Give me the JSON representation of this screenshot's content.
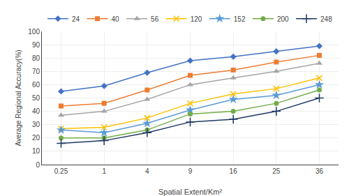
{
  "chart_data": {
    "type": "line",
    "xlabel": "Spatial Extent/Km²",
    "ylabel": "Average Regional Accuracy(%)",
    "categories": [
      "0.25",
      "1",
      "4",
      "9",
      "16",
      "25",
      "36"
    ],
    "series": [
      {
        "name": "24",
        "color": "#4472C4",
        "marker": "diamond",
        "values": [
          55,
          59,
          69,
          78,
          81,
          85,
          89
        ]
      },
      {
        "name": "40",
        "color": "#ED7D31",
        "marker": "square",
        "values": [
          44,
          46,
          56,
          67,
          71,
          77,
          82
        ]
      },
      {
        "name": "56",
        "color": "#A5A5A5",
        "marker": "triangle",
        "values": [
          37,
          40,
          49,
          60,
          65,
          70,
          76
        ]
      },
      {
        "name": "120",
        "color": "#FFC000",
        "marker": "x",
        "values": [
          27,
          28,
          35,
          46,
          53,
          57,
          65
        ]
      },
      {
        "name": "152",
        "color": "#5B9BD5",
        "marker": "star",
        "values": [
          26,
          24,
          31,
          41,
          49,
          52,
          60
        ]
      },
      {
        "name": "200",
        "color": "#70AD47",
        "marker": "circle",
        "values": [
          20,
          20,
          26,
          38,
          40,
          46,
          56
        ]
      },
      {
        "name": "248",
        "color": "#1F3864",
        "marker": "plus",
        "values": [
          16,
          18,
          24,
          32,
          34,
          40,
          50
        ]
      }
    ],
    "ylim": [
      0,
      100
    ],
    "yticks": [
      0,
      10,
      20,
      30,
      40,
      50,
      60,
      70,
      80,
      90,
      100
    ],
    "grid": true,
    "legend": "top"
  }
}
